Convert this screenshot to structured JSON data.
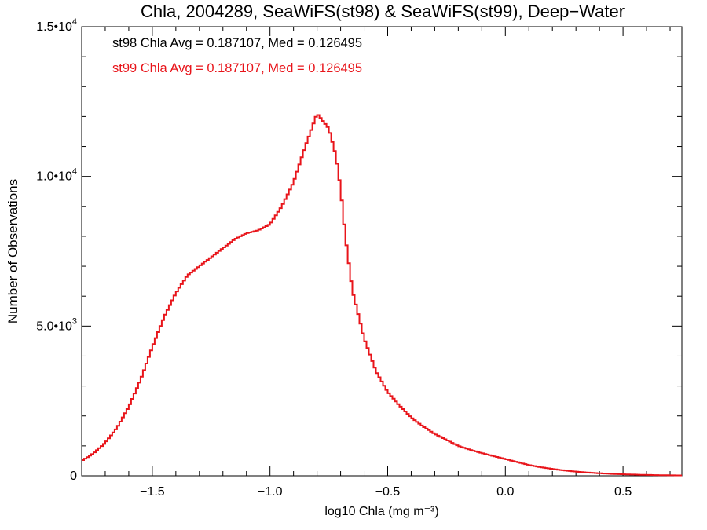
{
  "chart_data": {
    "type": "line",
    "step": true,
    "title": "Chla, 2004289, SeaWiFS(st98) & SeaWiFS(st99), Deep−Water",
    "xlabel": "log10 Chla (mg m⁻³)",
    "ylabel": "Number of Observations",
    "xlim": [
      -1.8,
      0.75
    ],
    "ylim": [
      0,
      15000
    ],
    "x_ticks": [
      {
        "value": -1.5,
        "label": "−1.5"
      },
      {
        "value": -1.0,
        "label": "−1.0"
      },
      {
        "value": -0.5,
        "label": "−0.5"
      },
      {
        "value": 0.0,
        "label": "0.0"
      },
      {
        "value": 0.5,
        "label": "0.5"
      }
    ],
    "y_ticks": [
      {
        "value": 0,
        "label": "0"
      },
      {
        "value": 5000,
        "label": "5.0•10",
        "sup": "3"
      },
      {
        "value": 10000,
        "label": "1.0•10",
        "sup": "4"
      },
      {
        "value": 15000,
        "label": "1.5•10",
        "sup": "4"
      }
    ],
    "annotations": [
      {
        "text": "st98 Chla Avg = 0.187107, Med = 0.126495",
        "color": "#000000"
      },
      {
        "text": "st99 Chla Avg = 0.187107, Med = 0.126495",
        "color": "#e8141a"
      }
    ],
    "series": [
      {
        "color": "#e8141a",
        "x": [
          -1.8,
          -1.75,
          -1.7,
          -1.65,
          -1.6,
          -1.55,
          -1.5,
          -1.45,
          -1.4,
          -1.35,
          -1.3,
          -1.25,
          -1.2,
          -1.15,
          -1.1,
          -1.05,
          -1.0,
          -0.95,
          -0.9,
          -0.85,
          -0.8,
          -0.75,
          -0.72,
          -0.7,
          -0.68,
          -0.65,
          -0.6,
          -0.55,
          -0.5,
          -0.45,
          -0.4,
          -0.35,
          -0.3,
          -0.25,
          -0.2,
          -0.15,
          -0.1,
          -0.05,
          0.0,
          0.05,
          0.1,
          0.15,
          0.2,
          0.25,
          0.3,
          0.35,
          0.4,
          0.45,
          0.5,
          0.55,
          0.6,
          0.65,
          0.7,
          0.75
        ],
        "y": [
          500,
          750,
          1100,
          1600,
          2300,
          3200,
          4300,
          5300,
          6100,
          6700,
          7000,
          7300,
          7600,
          7900,
          8100,
          8200,
          8400,
          9000,
          9800,
          11000,
          12100,
          11600,
          10700,
          9600,
          8000,
          6200,
          4600,
          3500,
          2800,
          2350,
          1950,
          1650,
          1400,
          1200,
          1000,
          870,
          760,
          660,
          560,
          460,
          360,
          290,
          230,
          180,
          140,
          110,
          85,
          65,
          50,
          40,
          30,
          22,
          16,
          12
        ]
      }
    ]
  }
}
